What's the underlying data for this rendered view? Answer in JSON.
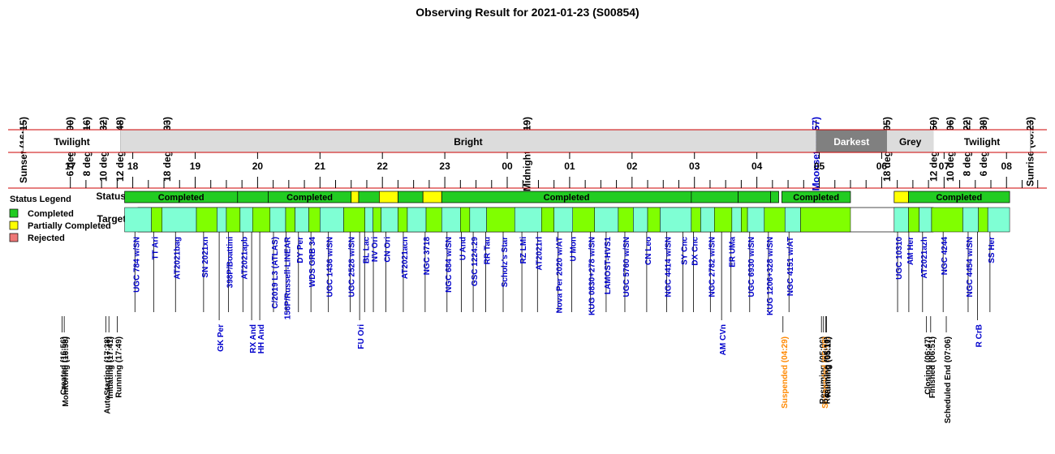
{
  "title": "Observing Result for 2021-01-23 (S00854)",
  "time_axis": {
    "start_hour": 16.25,
    "end_hour": 32.4,
    "x0": 29,
    "x1": 1271
  },
  "hour_ticks": [
    "17",
    "18",
    "19",
    "20",
    "21",
    "22",
    "23",
    "00",
    "01",
    "02",
    "03",
    "04",
    "05",
    "06",
    "07",
    "08"
  ],
  "sun_events": [
    {
      "label": "Sunset (16:15)",
      "h": 16.25,
      "color": "#000000"
    },
    {
      "label": "6 deg (17:00)",
      "h": 17.0,
      "color": "#000000"
    },
    {
      "label": "8 deg (17:16)",
      "h": 17.267,
      "color": "#000000"
    },
    {
      "label": "10 deg (17:32)",
      "h": 17.533,
      "color": "#000000"
    },
    {
      "label": "12 deg (17:48)",
      "h": 17.8,
      "color": "#000000"
    },
    {
      "label": "18 deg (18:33)",
      "h": 18.55,
      "color": "#000000"
    },
    {
      "label": "Midnight (00:19)",
      "h": 24.317,
      "color": "#000000"
    },
    {
      "label": "Moonset (04:57)",
      "h": 28.95,
      "color": "#0000cc"
    },
    {
      "label": "18 deg (06:05)",
      "h": 30.083,
      "color": "#000000"
    },
    {
      "label": "12 deg (06:50)",
      "h": 30.833,
      "color": "#000000"
    },
    {
      "label": "10 deg (07:06)",
      "h": 31.1,
      "color": "#000000"
    },
    {
      "label": "8 deg (07:22)",
      "h": 31.367,
      "color": "#000000"
    },
    {
      "label": "6 deg (07:38)",
      "h": 31.633,
      "color": "#000000"
    },
    {
      "label": "Sunrise (08:23)",
      "h": 32.383,
      "color": "#000000"
    }
  ],
  "phases": [
    {
      "label": "Twilight",
      "start": 16.25,
      "end": 17.8,
      "fill": "#ffffff",
      "text": "#000000"
    },
    {
      "label": "Bright",
      "start": 17.8,
      "end": 28.95,
      "fill": "#dcdcdc",
      "text": "#000000"
    },
    {
      "label": "Darkest",
      "start": 28.95,
      "end": 30.083,
      "fill": "#808080",
      "text": "#ffffff"
    },
    {
      "label": "Grey",
      "start": 30.083,
      "end": 30.833,
      "fill": "#dcdcdc",
      "text": "#000000"
    },
    {
      "label": "Twilight",
      "start": 30.833,
      "end": 32.383,
      "fill": "#ffffff",
      "text": "#000000"
    }
  ],
  "row_labels": {
    "status": "Status",
    "targets": "Targets"
  },
  "legend": {
    "title": "Status Legend",
    "items": [
      {
        "label": "Completed",
        "color": "#22cc22"
      },
      {
        "label": "Partially Completed",
        "color": "#ffff00"
      },
      {
        "label": "Rejected",
        "color": "#ee7777"
      }
    ]
  },
  "colors": {
    "completed": "#22cc22",
    "partial": "#ffff00",
    "target_a": "#80ff00",
    "target_b": "#7fffd4",
    "grid": "#cc0000"
  },
  "status_segments": [
    {
      "start": 17.87,
      "end": 19.68,
      "state": "completed",
      "label": "Completed"
    },
    {
      "start": 19.68,
      "end": 20.17,
      "state": "completed",
      "label": ""
    },
    {
      "start": 20.17,
      "end": 21.5,
      "state": "completed",
      "label": "Completed"
    },
    {
      "start": 21.5,
      "end": 21.62,
      "state": "partial",
      "label": ""
    },
    {
      "start": 21.62,
      "end": 21.95,
      "state": "completed",
      "label": ""
    },
    {
      "start": 21.95,
      "end": 22.25,
      "state": "partial",
      "label": ""
    },
    {
      "start": 22.25,
      "end": 22.65,
      "state": "completed",
      "label": ""
    },
    {
      "start": 22.65,
      "end": 22.95,
      "state": "partial",
      "label": ""
    },
    {
      "start": 22.95,
      "end": 26.95,
      "state": "completed",
      "label": "Completed"
    },
    {
      "start": 26.95,
      "end": 27.7,
      "state": "completed",
      "label": ""
    },
    {
      "start": 27.7,
      "end": 28.22,
      "state": "completed",
      "label": ""
    },
    {
      "start": 28.22,
      "end": 28.35,
      "state": "completed",
      "label": ""
    },
    {
      "start": 28.4,
      "end": 29.5,
      "state": "completed",
      "label": "Completed"
    },
    {
      "start": 30.2,
      "end": 30.43,
      "state": "partial",
      "label": ""
    },
    {
      "start": 30.43,
      "end": 32.05,
      "state": "completed",
      "label": "Completed"
    }
  ],
  "target_blocks": [
    [
      17.87,
      18.3
    ],
    [
      18.3,
      18.47
    ],
    [
      18.47,
      19.02
    ],
    [
      19.02,
      19.35
    ],
    [
      19.35,
      19.5
    ],
    [
      19.5,
      19.72
    ],
    [
      19.72,
      19.92
    ],
    [
      19.92,
      20.2
    ],
    [
      20.2,
      20.45
    ],
    [
      20.45,
      20.6
    ],
    [
      20.6,
      20.82
    ],
    [
      20.82,
      21.0
    ],
    [
      21.0,
      21.38
    ],
    [
      21.38,
      21.72
    ],
    [
      21.72,
      21.85
    ],
    [
      21.85,
      21.98
    ],
    [
      21.98,
      22.25
    ],
    [
      22.25,
      22.4
    ],
    [
      22.4,
      22.7
    ],
    [
      22.7,
      22.95
    ],
    [
      22.95,
      23.25
    ],
    [
      23.25,
      23.4
    ],
    [
      23.4,
      23.67
    ],
    [
      23.67,
      24.12
    ],
    [
      24.12,
      24.55
    ],
    [
      24.55,
      24.75
    ],
    [
      24.75,
      25.05
    ],
    [
      25.05,
      25.4
    ],
    [
      25.4,
      25.78
    ],
    [
      25.78,
      26.02
    ],
    [
      26.02,
      26.25
    ],
    [
      26.25,
      26.45
    ],
    [
      26.45,
      26.95
    ],
    [
      26.95,
      27.1
    ],
    [
      27.1,
      27.32
    ],
    [
      27.32,
      27.6
    ],
    [
      27.6,
      27.75
    ],
    [
      27.75,
      27.85
    ],
    [
      27.85,
      28.12
    ],
    [
      28.12,
      28.45
    ],
    [
      28.45,
      28.7
    ],
    [
      28.7,
      29.5
    ],
    [
      30.2,
      30.43
    ],
    [
      30.43,
      30.6
    ],
    [
      30.6,
      30.8
    ],
    [
      30.8,
      31.3
    ],
    [
      31.3,
      31.55
    ],
    [
      31.55,
      31.7
    ],
    [
      31.7,
      32.05
    ]
  ],
  "targets": [
    {
      "label": "UGC 784 w/SN",
      "h": 18.1
    },
    {
      "label": "TT Ari",
      "h": 18.4
    },
    {
      "label": "AT2021bag",
      "h": 18.75
    },
    {
      "label": "SN 2021xn",
      "h": 19.2
    },
    {
      "label": "398P/Boattini",
      "h": 19.6
    },
    {
      "label": "AT2021apb",
      "h": 19.83
    },
    {
      "label": "C/2019 L3 (ATLAS)",
      "h": 20.32
    },
    {
      "label": "156P/Russell-LINEAR",
      "h": 20.52
    },
    {
      "label": "DY Per",
      "h": 20.72
    },
    {
      "label": "WDS GRB 34",
      "h": 20.92
    },
    {
      "label": "UGC 1436 w/SN",
      "h": 21.2
    },
    {
      "label": "UGC 2528 w/SN",
      "h": 21.55
    },
    {
      "label": "BL Lac",
      "h": 21.78
    },
    {
      "label": "NV Ori",
      "h": 21.92
    },
    {
      "label": "CN Ori",
      "h": 22.12
    },
    {
      "label": "AT2021acn",
      "h": 22.4
    },
    {
      "label": "NGC 3718",
      "h": 22.75
    },
    {
      "label": "NGC 684 w/SN",
      "h": 23.1
    },
    {
      "label": "U And",
      "h": 23.33
    },
    {
      "label": "GSC 1224:29",
      "h": 23.52
    },
    {
      "label": "RR Tau",
      "h": 23.72
    },
    {
      "label": "Scholz's Star",
      "h": 24.0
    },
    {
      "label": "RZ LMi",
      "h": 24.3
    },
    {
      "label": "AT2021rl",
      "h": 24.55
    },
    {
      "label": "Nova Per 2020 w/AT",
      "h": 24.88
    },
    {
      "label": "U Mon",
      "h": 25.1
    },
    {
      "label": "KUG 0830+278 w/SN",
      "h": 25.4
    },
    {
      "label": "LAMOST-HVS1",
      "h": 25.65
    },
    {
      "label": "UGC 5760 w/SN",
      "h": 25.95
    },
    {
      "label": "CN Leo",
      "h": 26.3
    },
    {
      "label": "NGC 4414 w/SN",
      "h": 26.62
    },
    {
      "label": "SY Cnc",
      "h": 26.88
    },
    {
      "label": "DX Cnc",
      "h": 27.05
    },
    {
      "label": "NGC 2782 w/SN",
      "h": 27.32
    },
    {
      "label": "ER UMa",
      "h": 27.65
    },
    {
      "label": "UGC 6930 w/SN",
      "h": 27.95
    },
    {
      "label": "KUG 1206+328 w/SN",
      "h": 28.25
    },
    {
      "label": "NGC 4151 w/AT",
      "h": 28.58
    },
    {
      "label": "UGC 10310",
      "h": 30.32
    },
    {
      "label": "AM Her",
      "h": 30.5
    },
    {
      "label": "AT2021azh",
      "h": 30.72
    },
    {
      "label": "NGC 4244",
      "h": 31.05
    },
    {
      "label": "NGC 4454 w/SN",
      "h": 31.45
    },
    {
      "label": "SS Her",
      "h": 31.8
    }
  ],
  "low_targets": [
    {
      "label": "GK Per",
      "h": 19.45
    },
    {
      "label": "RX And",
      "h": 19.97
    },
    {
      "label": "HH And",
      "h": 20.1
    },
    {
      "label": "FU Ori",
      "h": 21.7
    },
    {
      "label": "AM CVn",
      "h": 27.5
    },
    {
      "label": "R CrB",
      "h": 31.6
    }
  ],
  "events": [
    {
      "label": "Created (16:56)",
      "h": 16.933,
      "color": "#000000"
    },
    {
      "label": "Monitoring (16:58)",
      "h": 16.967,
      "color": "#000000"
    },
    {
      "label": "AutoStarting (17:38)",
      "h": 17.633,
      "color": "#000000"
    },
    {
      "label": "Initiating (17:41)",
      "h": 17.683,
      "color": "#000000"
    },
    {
      "label": "Running (17:49)",
      "h": 17.817,
      "color": "#000000"
    },
    {
      "label": "Suspended (04:29)",
      "h": 28.483,
      "color": "#ff8800"
    },
    {
      "label": "Resuming (05:06)",
      "h": 29.1,
      "color": "#000000"
    },
    {
      "label": "Suspended (05:08)",
      "h": 29.133,
      "color": "#ff8800"
    },
    {
      "label": "Resuming (05:10)",
      "h": 29.167,
      "color": "#000000"
    },
    {
      "label": "Running (05:11)",
      "h": 29.183,
      "color": "#000000"
    },
    {
      "label": "Closing (06:47)",
      "h": 30.783,
      "color": "#000000"
    },
    {
      "label": "Finished (06:51)",
      "h": 30.85,
      "color": "#000000"
    },
    {
      "label": "Scheduled End (07:06)",
      "h": 31.1,
      "color": "#000000"
    }
  ]
}
